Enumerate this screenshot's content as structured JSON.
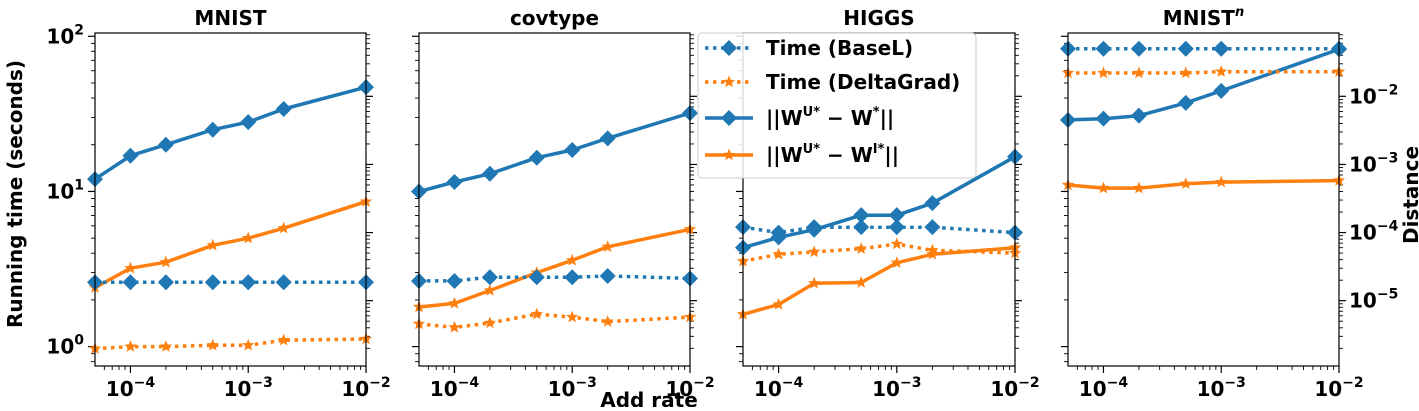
{
  "chart_data": {
    "type": "line",
    "xlabel": "Add rate",
    "ylabel_left": "Running time (seconds)",
    "ylabel_right": "Distance",
    "x_scale": "log",
    "y_scale": "log",
    "xlim": [
      5e-05,
      0.01
    ],
    "x": [
      5e-05,
      0.0001,
      0.0002,
      0.0005,
      0.001,
      0.002,
      0.01
    ],
    "x_ticks": [
      {
        "value": 0.0001,
        "base": "10",
        "exp": "−4"
      },
      {
        "value": 0.001,
        "base": "10",
        "exp": "−3"
      },
      {
        "value": 0.01,
        "base": "10",
        "exp": "−2"
      }
    ],
    "time_ylim": [
      0.75,
      105
    ],
    "time_ticks": [
      {
        "value": 1,
        "base": "10",
        "exp": "0"
      },
      {
        "value": 10,
        "base": "10",
        "exp": "1"
      },
      {
        "value": 100,
        "base": "10",
        "exp": "2"
      }
    ],
    "distance_ylim": [
      1.1e-06,
      0.085
    ],
    "distance_ticks": [
      {
        "value": 1e-05,
        "base": "10",
        "exp": "−5"
      },
      {
        "value": 0.0001,
        "base": "10",
        "exp": "−4"
      },
      {
        "value": 0.001,
        "base": "10",
        "exp": "−3"
      },
      {
        "value": 0.01,
        "base": "10",
        "exp": "−2"
      }
    ],
    "colors": {
      "blue": "#1f77b4",
      "orange": "#ff7f0e"
    },
    "legend": {
      "placement": "upper-left of HIGGS panel",
      "entries": [
        {
          "key": "time_basel",
          "label": "Time (BaseL)",
          "color": "#1f77b4",
          "marker": "diamond",
          "style": "dotted"
        },
        {
          "key": "time_deltagrad",
          "label": "Time (DeltaGrad)",
          "color": "#ff7f0e",
          "marker": "star",
          "style": "dotted"
        },
        {
          "key": "dist_basel",
          "label": "||W",
          "sup1": "U*",
          "mid": " − W",
          "sup2": "*",
          "end": "||",
          "color": "#1f77b4",
          "marker": "diamond",
          "style": "solid"
        },
        {
          "key": "dist_deltagrad",
          "label": "||W",
          "sup1": "U*",
          "mid": " − W",
          "sup2": "I*",
          "end": "||",
          "color": "#ff7f0e",
          "marker": "star",
          "style": "solid"
        }
      ]
    },
    "panels": [
      {
        "title": "MNIST",
        "title_sup": "",
        "series": [
          {
            "key": "dist_basel",
            "axis": "time",
            "values": [
              12,
              17,
              20,
              25,
              28,
              34,
              47
            ]
          },
          {
            "key": "dist_deltagrad",
            "axis": "time",
            "values": [
              2.4,
              3.2,
              3.5,
              4.5,
              5.0,
              5.8,
              8.6
            ]
          },
          {
            "key": "time_basel",
            "axis": "time",
            "values": [
              2.6,
              2.6,
              2.6,
              2.6,
              2.6,
              2.6,
              2.6
            ]
          },
          {
            "key": "time_deltagrad",
            "axis": "time",
            "values": [
              0.97,
              1.0,
              1.0,
              1.02,
              1.02,
              1.1,
              1.12
            ]
          }
        ]
      },
      {
        "title": "covtype",
        "title_sup": "",
        "series": [
          {
            "key": "dist_basel",
            "axis": "time",
            "values": [
              10,
              11.5,
              13,
              16.5,
              18.5,
              22,
              32
            ]
          },
          {
            "key": "dist_deltagrad",
            "axis": "time",
            "values": [
              1.8,
              1.9,
              2.3,
              3.0,
              3.6,
              4.4,
              5.7
            ]
          },
          {
            "key": "time_basel",
            "axis": "time",
            "values": [
              2.65,
              2.65,
              2.8,
              2.8,
              2.8,
              2.85,
              2.75
            ]
          },
          {
            "key": "time_deltagrad",
            "axis": "time",
            "values": [
              1.4,
              1.33,
              1.42,
              1.62,
              1.55,
              1.45,
              1.55
            ]
          }
        ]
      },
      {
        "title": "HIGGS",
        "title_sup": "",
        "series": [
          {
            "key": "dist_basel",
            "axis": "distance",
            "values": [
              6e-05,
              8.5e-05,
              0.00011,
              0.00018,
              0.00018,
              0.00027,
              0.0013
            ]
          },
          {
            "key": "dist_deltagrad",
            "axis": "distance",
            "values": [
              6.3e-06,
              8.8e-06,
              1.8e-05,
              1.85e-05,
              3.6e-05,
              4.8e-05,
              6e-05
            ]
          },
          {
            "key": "time_basel",
            "axis": "distance",
            "values": [
              0.00012,
              0.0001,
              0.00012,
              0.00012,
              0.00012,
              0.00012,
              0.0001
            ]
          },
          {
            "key": "time_deltagrad",
            "axis": "distance",
            "values": [
              3.8e-05,
              4.8e-05,
              5.2e-05,
              5.8e-05,
              6.8e-05,
              5.5e-05,
              5e-05
            ]
          }
        ]
      },
      {
        "title": "MNIST",
        "title_sup": "n",
        "series": [
          {
            "key": "dist_basel",
            "axis": "distance",
            "values": [
              0.0045,
              0.0047,
              0.0052,
              0.008,
              0.012,
              null,
              0.049
            ]
          },
          {
            "key": "dist_deltagrad",
            "axis": "distance",
            "values": [
              0.0005,
              0.00045,
              0.00045,
              0.00052,
              0.00055,
              null,
              0.00058
            ]
          },
          {
            "key": "time_basel",
            "axis": "distance",
            "values": [
              0.05,
              0.05,
              0.05,
              0.05,
              0.05,
              null,
              0.05
            ]
          },
          {
            "key": "time_deltagrad",
            "axis": "distance",
            "values": [
              0.022,
              0.022,
              0.022,
              0.022,
              0.023,
              null,
              0.023
            ]
          }
        ]
      }
    ]
  }
}
